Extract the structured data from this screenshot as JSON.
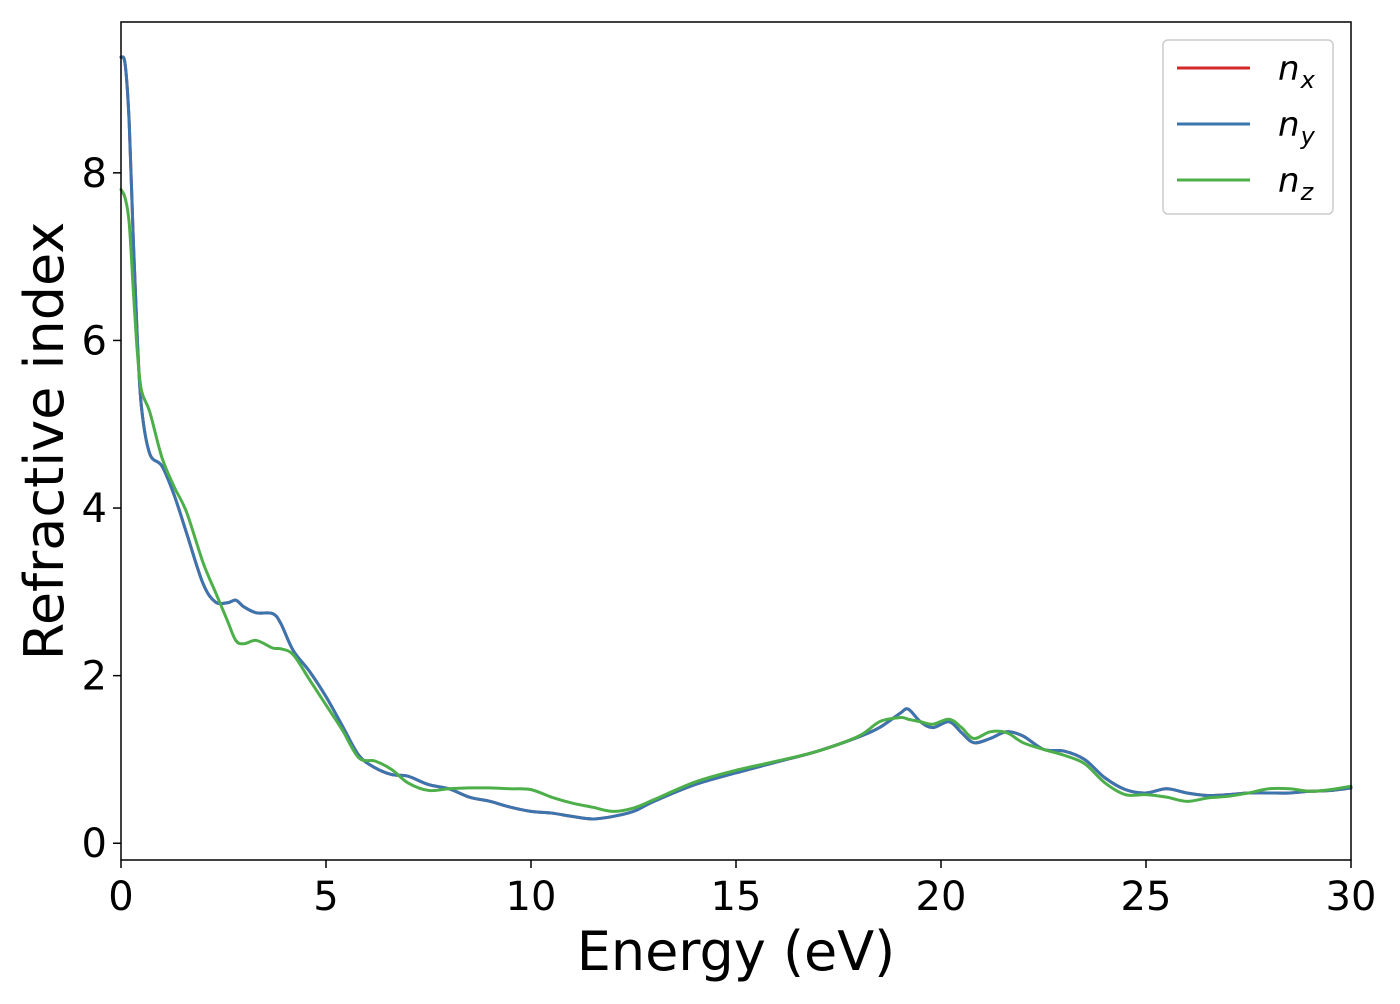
{
  "chart_data": {
    "type": "line",
    "title": "",
    "xlabel": "Energy (eV)",
    "ylabel": "Refractive index",
    "xlim": [
      0,
      30
    ],
    "ylim": [
      -0.2,
      9.8
    ],
    "xticks": [
      0,
      5,
      10,
      15,
      20,
      25,
      30
    ],
    "yticks": [
      0,
      2,
      4,
      6,
      8
    ],
    "grid": false,
    "legend_position": "top-right",
    "series": [
      {
        "name": "n_x",
        "label_base": "n",
        "label_sub": "x",
        "color": "#d62728",
        "x": [
          0,
          0.1,
          0.2,
          0.3,
          0.4,
          0.5,
          0.7,
          1.0,
          1.3,
          1.6,
          2.0,
          2.3,
          2.6,
          2.8,
          3.0,
          3.3,
          3.7,
          3.9,
          4.2,
          4.6,
          5.0,
          5.4,
          5.8,
          6.2,
          6.6,
          7.0,
          7.5,
          8.0,
          8.5,
          9.0,
          9.5,
          10.0,
          10.5,
          11.0,
          11.5,
          12.0,
          12.5,
          13.0,
          14.0,
          15.0,
          16.0,
          17.0,
          18.0,
          18.5,
          19.0,
          19.2,
          19.5,
          19.8,
          20.2,
          20.5,
          20.8,
          21.2,
          21.6,
          22.0,
          22.5,
          23.0,
          23.5,
          24.0,
          24.5,
          25.0,
          25.5,
          26.0,
          26.5,
          27.0,
          27.5,
          28.0,
          28.5,
          29.0,
          29.5,
          30.0
        ],
        "y": [
          9.38,
          9.3,
          8.6,
          7.2,
          6.0,
          5.2,
          4.65,
          4.5,
          4.15,
          3.7,
          3.1,
          2.88,
          2.87,
          2.9,
          2.82,
          2.75,
          2.74,
          2.62,
          2.3,
          2.05,
          1.75,
          1.4,
          1.05,
          0.9,
          0.82,
          0.8,
          0.7,
          0.65,
          0.55,
          0.5,
          0.43,
          0.38,
          0.36,
          0.32,
          0.29,
          0.32,
          0.38,
          0.5,
          0.7,
          0.84,
          0.97,
          1.1,
          1.27,
          1.38,
          1.55,
          1.6,
          1.45,
          1.38,
          1.45,
          1.32,
          1.2,
          1.25,
          1.33,
          1.28,
          1.12,
          1.1,
          1.0,
          0.78,
          0.64,
          0.6,
          0.65,
          0.6,
          0.57,
          0.58,
          0.6,
          0.6,
          0.6,
          0.62,
          0.63,
          0.66
        ]
      },
      {
        "name": "n_y",
        "label_base": "n",
        "label_sub": "y",
        "color": "#3b75af",
        "x": [
          0,
          0.1,
          0.2,
          0.3,
          0.4,
          0.5,
          0.7,
          1.0,
          1.3,
          1.6,
          2.0,
          2.3,
          2.6,
          2.8,
          3.0,
          3.3,
          3.7,
          3.9,
          4.2,
          4.6,
          5.0,
          5.4,
          5.8,
          6.2,
          6.6,
          7.0,
          7.5,
          8.0,
          8.5,
          9.0,
          9.5,
          10.0,
          10.5,
          11.0,
          11.5,
          12.0,
          12.5,
          13.0,
          14.0,
          15.0,
          16.0,
          17.0,
          18.0,
          18.5,
          19.0,
          19.2,
          19.5,
          19.8,
          20.2,
          20.5,
          20.8,
          21.2,
          21.6,
          22.0,
          22.5,
          23.0,
          23.5,
          24.0,
          24.5,
          25.0,
          25.5,
          26.0,
          26.5,
          27.0,
          27.5,
          28.0,
          28.5,
          29.0,
          29.5,
          30.0
        ],
        "y": [
          9.38,
          9.3,
          8.6,
          7.2,
          6.0,
          5.2,
          4.65,
          4.5,
          4.15,
          3.7,
          3.1,
          2.88,
          2.87,
          2.9,
          2.82,
          2.75,
          2.74,
          2.62,
          2.3,
          2.05,
          1.75,
          1.4,
          1.05,
          0.9,
          0.82,
          0.8,
          0.7,
          0.65,
          0.55,
          0.5,
          0.43,
          0.38,
          0.36,
          0.32,
          0.29,
          0.32,
          0.38,
          0.5,
          0.7,
          0.84,
          0.97,
          1.1,
          1.27,
          1.38,
          1.55,
          1.6,
          1.45,
          1.38,
          1.45,
          1.32,
          1.2,
          1.25,
          1.33,
          1.28,
          1.12,
          1.1,
          1.0,
          0.78,
          0.64,
          0.6,
          0.65,
          0.6,
          0.57,
          0.58,
          0.6,
          0.6,
          0.6,
          0.62,
          0.63,
          0.66
        ]
      },
      {
        "name": "n_z",
        "label_base": "n",
        "label_sub": "z",
        "color": "#4daf4a",
        "x": [
          0,
          0.1,
          0.2,
          0.3,
          0.4,
          0.5,
          0.7,
          1.0,
          1.3,
          1.6,
          2.0,
          2.3,
          2.6,
          2.8,
          3.0,
          3.3,
          3.7,
          3.9,
          4.2,
          4.6,
          5.0,
          5.4,
          5.8,
          6.2,
          6.6,
          7.0,
          7.5,
          8.0,
          8.5,
          9.0,
          9.5,
          10.0,
          10.5,
          11.0,
          11.5,
          12.0,
          12.5,
          13.0,
          14.0,
          15.0,
          16.0,
          17.0,
          18.0,
          18.5,
          19.0,
          19.2,
          19.5,
          19.8,
          20.2,
          20.5,
          20.8,
          21.2,
          21.6,
          22.0,
          22.5,
          23.0,
          23.5,
          24.0,
          24.5,
          25.0,
          25.5,
          26.0,
          26.5,
          27.0,
          27.5,
          28.0,
          28.5,
          29.0,
          29.5,
          30.0
        ],
        "y": [
          7.8,
          7.7,
          7.4,
          6.6,
          5.85,
          5.4,
          5.15,
          4.6,
          4.25,
          3.95,
          3.35,
          3.0,
          2.65,
          2.42,
          2.38,
          2.42,
          2.33,
          2.32,
          2.25,
          1.95,
          1.65,
          1.35,
          1.02,
          0.98,
          0.88,
          0.72,
          0.63,
          0.65,
          0.66,
          0.66,
          0.65,
          0.64,
          0.55,
          0.48,
          0.43,
          0.38,
          0.42,
          0.52,
          0.73,
          0.87,
          0.98,
          1.1,
          1.28,
          1.45,
          1.5,
          1.48,
          1.45,
          1.42,
          1.48,
          1.38,
          1.25,
          1.33,
          1.32,
          1.2,
          1.12,
          1.05,
          0.95,
          0.72,
          0.58,
          0.58,
          0.55,
          0.5,
          0.54,
          0.56,
          0.6,
          0.65,
          0.65,
          0.62,
          0.64,
          0.68
        ]
      }
    ]
  }
}
